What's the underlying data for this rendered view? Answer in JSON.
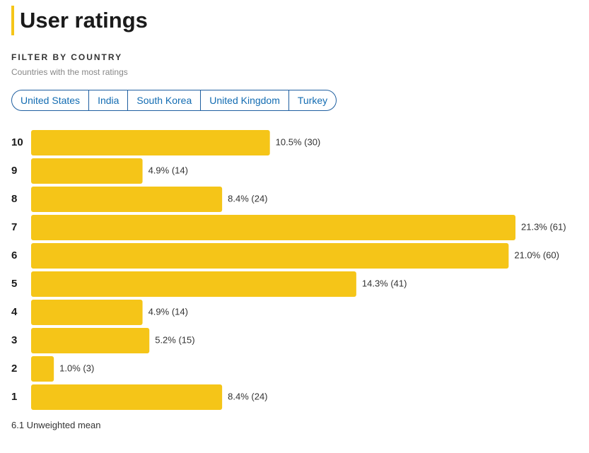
{
  "header": {
    "title": "User ratings",
    "filter_label": "FILTER BY COUNTRY",
    "filter_hint": "Countries with the most ratings"
  },
  "filters": [
    "United States",
    "India",
    "South Korea",
    "United Kingdom",
    "Turkey"
  ],
  "chart_data": {
    "type": "bar",
    "orientation": "horizontal",
    "color": "#f5c518",
    "categories": [
      "10",
      "9",
      "8",
      "7",
      "6",
      "5",
      "4",
      "3",
      "2",
      "1"
    ],
    "values": [
      10.5,
      4.9,
      8.4,
      21.3,
      21.0,
      14.3,
      4.9,
      5.2,
      1.0,
      8.4
    ],
    "value_labels": [
      "10.5% (30)",
      "4.9% (14)",
      "8.4% (24)",
      "21.3% (61)",
      "21.0% (60)",
      "14.3% (41)",
      "4.9% (14)",
      "5.2% (15)",
      "1.0% (3)",
      "8.4% (24)"
    ]
  },
  "footer": "6.1 Unweighted mean"
}
